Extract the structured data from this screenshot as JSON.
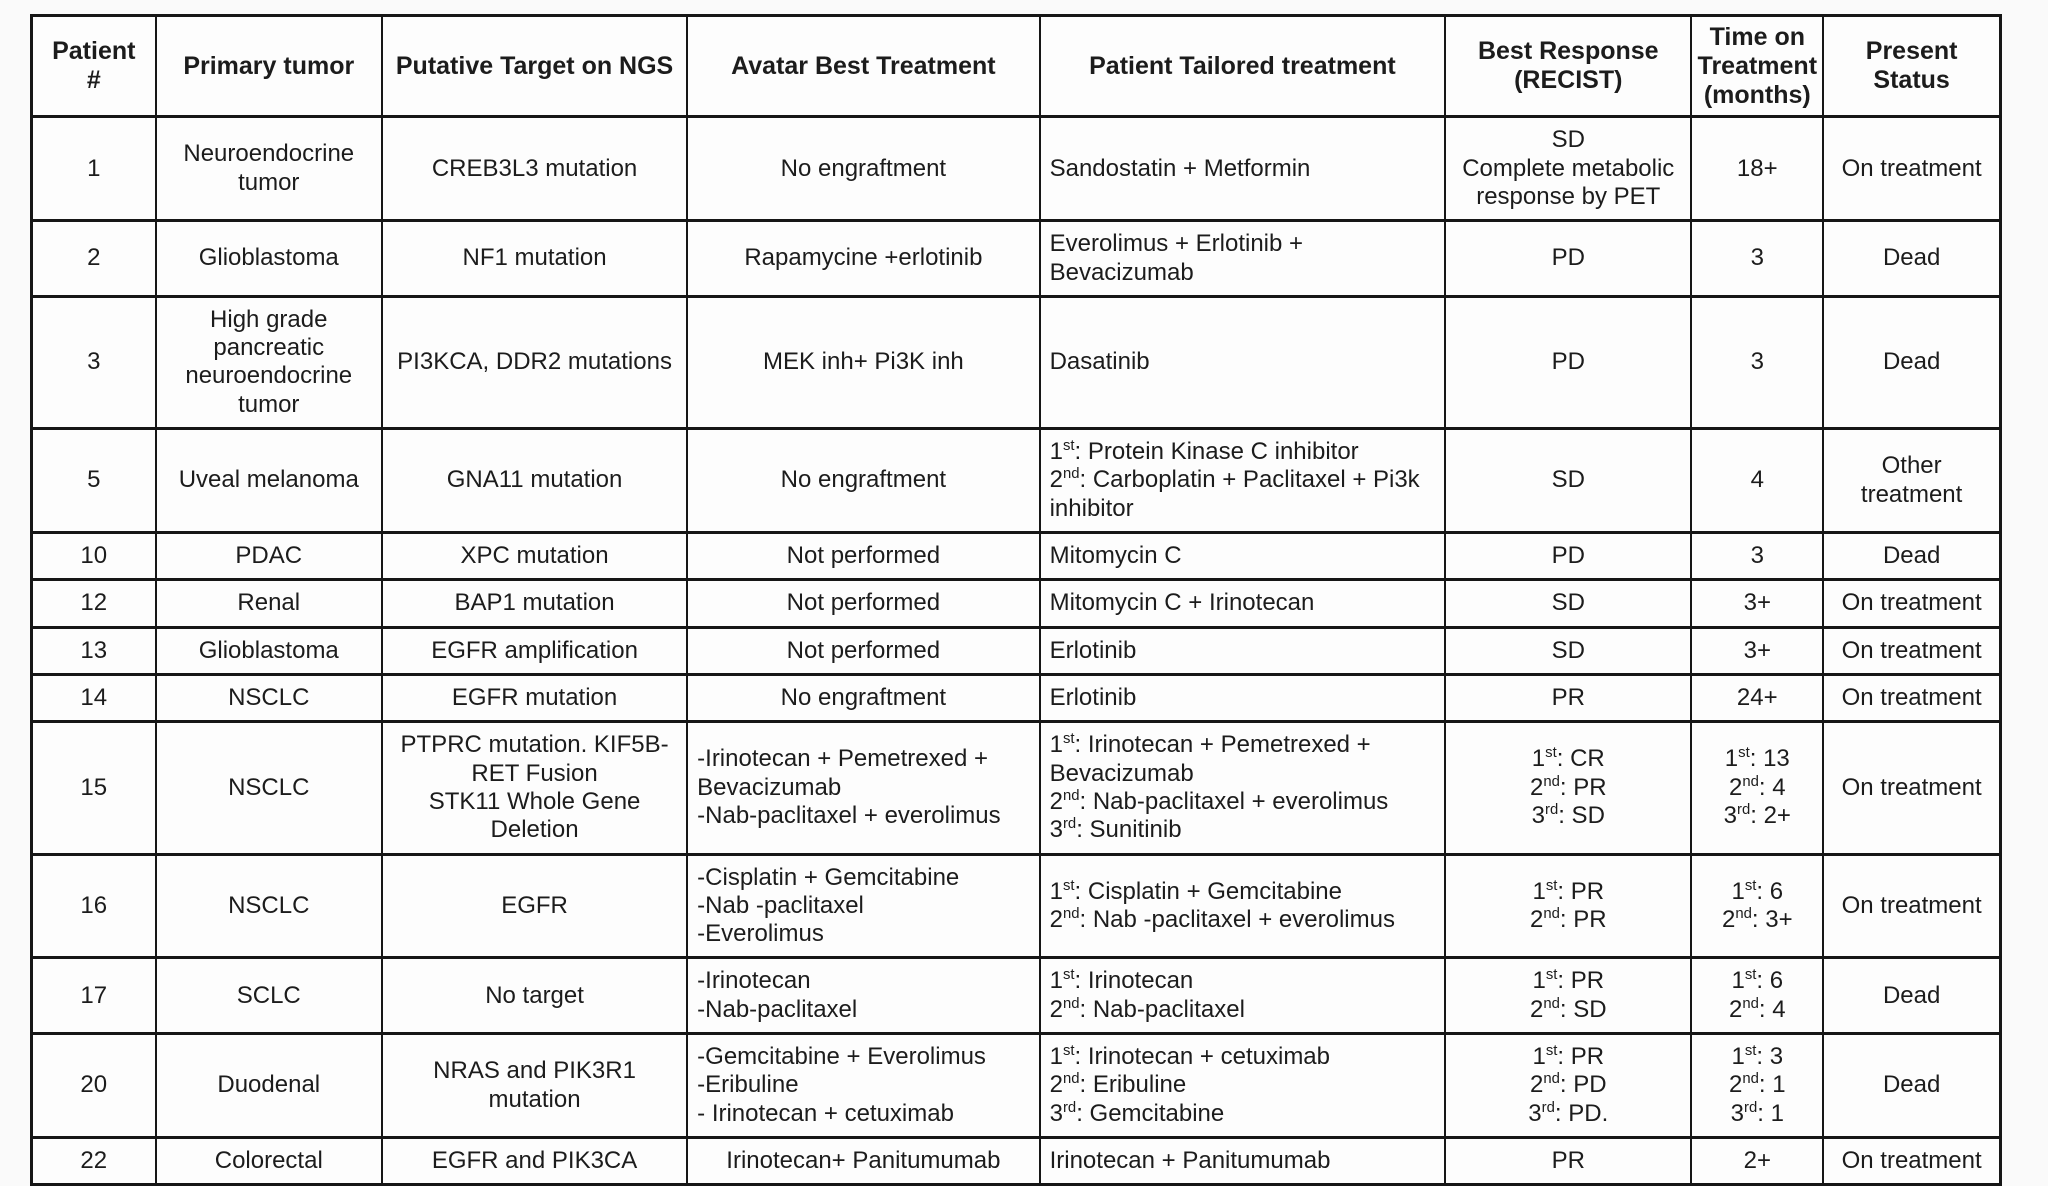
{
  "colors": {
    "text": "#1c1c1c",
    "border": "#161616",
    "page_background": "#fafafa",
    "cell_background": "#fdfdfd"
  },
  "table": {
    "columns": [
      {
        "key": "patient",
        "label": "Patient\n#"
      },
      {
        "key": "tumor",
        "label": "Primary tumor"
      },
      {
        "key": "target",
        "label": "Putative Target on NGS"
      },
      {
        "key": "avatar",
        "label": "Avatar Best Treatment"
      },
      {
        "key": "tailored",
        "label": "Patient Tailored treatment"
      },
      {
        "key": "response",
        "label": "Best Response\n(RECIST)"
      },
      {
        "key": "time",
        "label": "Time on\nTreatment\n(months)"
      },
      {
        "key": "status",
        "label": "Present\nStatus"
      }
    ],
    "rows": [
      {
        "patient": "1",
        "tumor": "Neuroendocrine tumor",
        "target": "CREB3L3 mutation",
        "avatar": "No engraftment",
        "tailored": "Sandostatin + Metformin",
        "response": "SD\nComplete metabolic response by PET",
        "time": "18+",
        "status": "On treatment"
      },
      {
        "patient": "2",
        "tumor": "Glioblastoma",
        "target": "NF1 mutation",
        "avatar": "Rapamycine +erlotinib",
        "tailored": "Everolimus + Erlotinib + Bevacizumab",
        "response": "PD",
        "time": "3",
        "status": "Dead"
      },
      {
        "patient": "3",
        "tumor": "High grade pancreatic neuroendocrine tumor",
        "target": "PI3KCA, DDR2 mutations",
        "avatar": "MEK inh+ Pi3K inh",
        "tailored": "Dasatinib",
        "response": "PD",
        "time": "3",
        "status": "Dead"
      },
      {
        "patient": "5",
        "tumor": "Uveal melanoma",
        "target": "GNA11 mutation",
        "avatar": "No engraftment",
        "tailored": "1st: Protein Kinase C inhibitor\n2nd: Carboplatin + Paclitaxel + Pi3k inhibitor",
        "response": "SD",
        "time": "4",
        "status": "Other\ntreatment"
      },
      {
        "patient": "10",
        "tumor": "PDAC",
        "target": "XPC mutation",
        "avatar": "Not performed",
        "tailored": "Mitomycin C",
        "response": "PD",
        "time": "3",
        "status": "Dead"
      },
      {
        "patient": "12",
        "tumor": "Renal",
        "target": "BAP1 mutation",
        "avatar": "Not performed",
        "tailored": "Mitomycin C + Irinotecan",
        "response": "SD",
        "time": "3+",
        "status": "On treatment"
      },
      {
        "patient": "13",
        "tumor": "Glioblastoma",
        "target": "EGFR amplification",
        "avatar": "Not performed",
        "tailored": "Erlotinib",
        "response": "SD",
        "time": "3+",
        "status": "On treatment"
      },
      {
        "patient": "14",
        "tumor": "NSCLC",
        "target": "EGFR mutation",
        "avatar": "No engraftment",
        "tailored": "Erlotinib",
        "response": "PR",
        "time": "24+",
        "status": "On treatment"
      },
      {
        "patient": "15",
        "tumor": "NSCLC",
        "target": "PTPRC mutation. KIF5B-RET Fusion\nSTK11 Whole Gene Deletion",
        "avatar": "-Irinotecan + Pemetrexed + Bevacizumab\n-Nab-paclitaxel + everolimus",
        "tailored": "1st: Irinotecan + Pemetrexed + Bevacizumab\n2nd: Nab-paclitaxel + everolimus\n3rd: Sunitinib",
        "response": "1st:  CR\n2nd: PR\n3rd: SD",
        "time": "1st: 13\n2nd: 4\n3rd: 2+",
        "status": "On treatment"
      },
      {
        "patient": "16",
        "tumor": "NSCLC",
        "target": "EGFR",
        "avatar": "-Cisplatin + Gemcitabine\n-Nab -paclitaxel\n-Everolimus",
        "tailored": "1st: Cisplatin + Gemcitabine\n2nd: Nab -paclitaxel + everolimus",
        "response": "1st:  PR\n2nd: PR",
        "time": "1st:  6\n2nd: 3+",
        "status": "On treatment"
      },
      {
        "patient": "17",
        "tumor": "SCLC",
        "target": "No target",
        "avatar": "-Irinotecan\n-Nab-paclitaxel",
        "tailored": "1st: Irinotecan\n2nd: Nab-paclitaxel",
        "response": "1st:  PR\n2nd: SD",
        "time": "1st:  6\n2nd: 4",
        "status": "Dead"
      },
      {
        "patient": "20",
        "tumor": "Duodenal",
        "target": "NRAS and PIK3R1\nmutation",
        "avatar": "-Gemcitabine + Everolimus\n-Eribuline\n- Irinotecan + cetuximab",
        "tailored": "1st: Irinotecan + cetuximab\n2nd: Eribuline\n3rd: Gemcitabine",
        "response": "1st:  PR\n2nd: PD\n3rd: PD.",
        "time": "1st: 3\n2nd: 1\n3rd: 1",
        "status": "Dead"
      },
      {
        "patient": "22",
        "tumor": "Colorectal",
        "target": "EGFR and PIK3CA",
        "avatar": "Irinotecan+ Panitumumab",
        "tailored": "Irinotecan + Panitumumab",
        "response": "PR",
        "time": "2+",
        "status": "On treatment"
      }
    ]
  }
}
